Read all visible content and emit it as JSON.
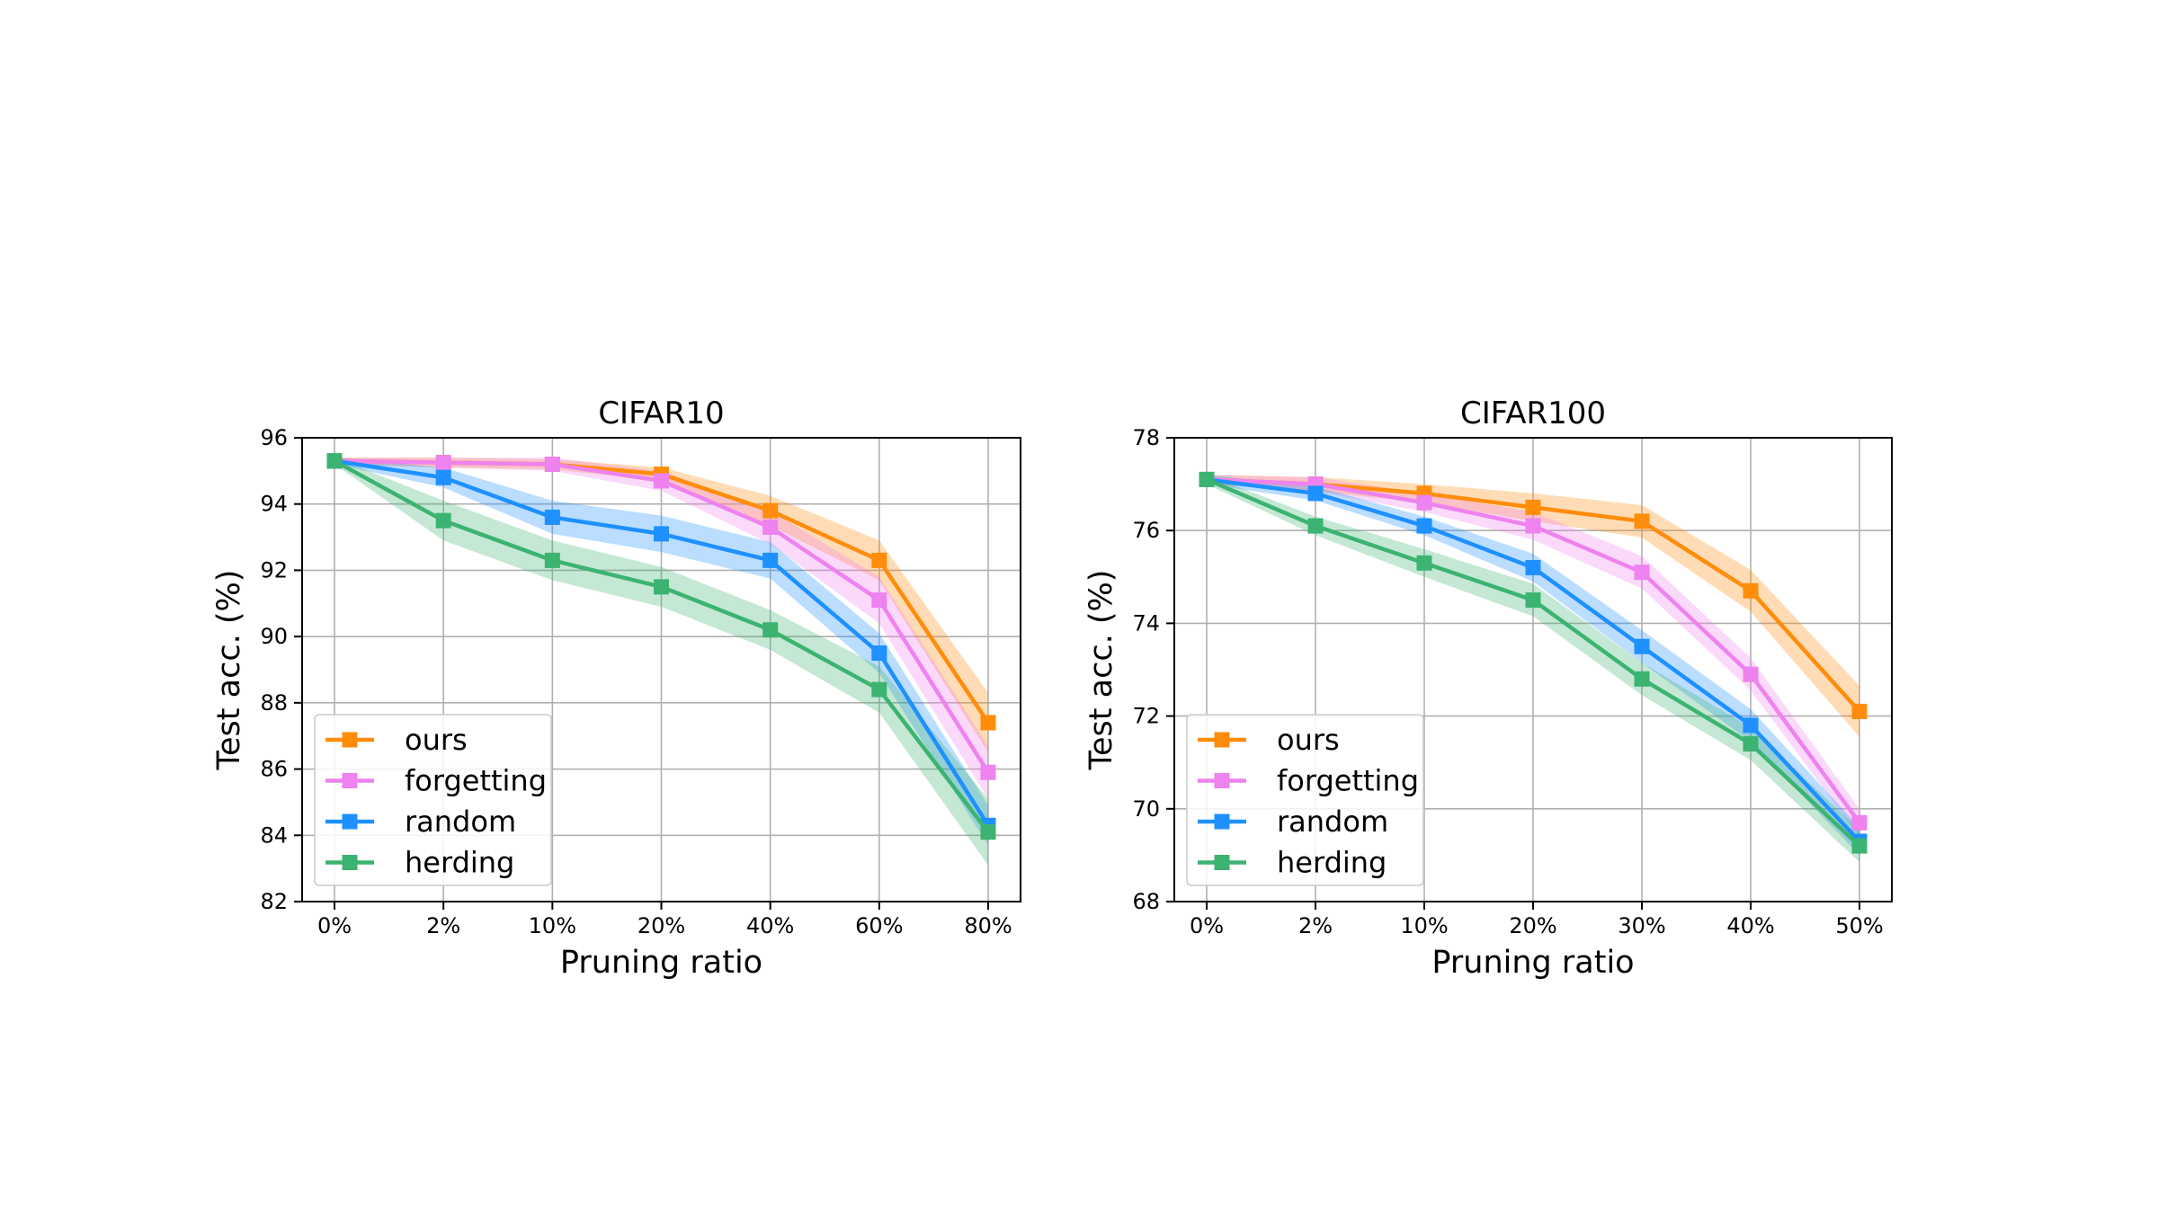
{
  "figure": {
    "colors": {
      "ours": "#ff8c0a",
      "forgetting": "#ee82ee",
      "random": "#1e90ff",
      "herding": "#3cb371"
    }
  },
  "chart_data": [
    {
      "type": "line",
      "title": "CIFAR10",
      "xlabel": "Pruning ratio",
      "ylabel": "Test acc. (%)",
      "categories": [
        "0%",
        "2%",
        "10%",
        "20%",
        "40%",
        "60%",
        "80%"
      ],
      "ylim": [
        82,
        96
      ],
      "yticks": [
        82,
        84,
        86,
        88,
        90,
        92,
        94,
        96
      ],
      "grid": true,
      "legend_position": "lower-left",
      "series": [
        {
          "name": "ours",
          "values": [
            95.3,
            95.25,
            95.2,
            94.9,
            93.8,
            92.3,
            87.4
          ],
          "std": [
            0.1,
            0.15,
            0.15,
            0.2,
            0.45,
            0.6,
            0.9
          ]
        },
        {
          "name": "forgetting",
          "values": [
            95.3,
            95.25,
            95.2,
            94.7,
            93.3,
            91.1,
            85.9
          ],
          "std": [
            0.1,
            0.15,
            0.2,
            0.3,
            0.5,
            0.7,
            0.8
          ]
        },
        {
          "name": "random",
          "values": [
            95.3,
            94.8,
            93.6,
            93.1,
            92.3,
            89.5,
            84.3
          ],
          "std": [
            0.1,
            0.3,
            0.5,
            0.55,
            0.55,
            0.6,
            0.6
          ]
        },
        {
          "name": "herding",
          "values": [
            95.3,
            93.5,
            92.3,
            91.5,
            90.2,
            88.4,
            84.1
          ],
          "std": [
            0.1,
            0.6,
            0.6,
            0.6,
            0.6,
            0.7,
            1.0
          ]
        }
      ]
    },
    {
      "type": "line",
      "title": "CIFAR100",
      "xlabel": "Pruning ratio",
      "ylabel": "Test acc. (%)",
      "categories": [
        "0%",
        "2%",
        "10%",
        "20%",
        "30%",
        "40%",
        "50%"
      ],
      "ylim": [
        68,
        78
      ],
      "yticks": [
        68,
        70,
        72,
        74,
        76,
        78
      ],
      "grid": true,
      "legend_position": "lower-left",
      "series": [
        {
          "name": "ours",
          "values": [
            77.1,
            77.0,
            76.8,
            76.5,
            76.2,
            74.7,
            72.1
          ],
          "std": [
            0.1,
            0.15,
            0.2,
            0.3,
            0.35,
            0.45,
            0.55
          ]
        },
        {
          "name": "forgetting",
          "values": [
            77.1,
            77.0,
            76.6,
            76.1,
            75.1,
            72.9,
            69.7
          ],
          "std": [
            0.1,
            0.15,
            0.2,
            0.3,
            0.35,
            0.35,
            0.3
          ]
        },
        {
          "name": "random",
          "values": [
            77.1,
            76.8,
            76.1,
            75.2,
            73.5,
            71.8,
            69.3
          ],
          "std": [
            0.1,
            0.15,
            0.2,
            0.3,
            0.35,
            0.35,
            0.3
          ]
        },
        {
          "name": "herding",
          "values": [
            77.1,
            76.1,
            75.3,
            74.5,
            72.8,
            71.4,
            69.2
          ],
          "std": [
            0.1,
            0.2,
            0.3,
            0.35,
            0.35,
            0.35,
            0.35
          ]
        }
      ]
    }
  ]
}
